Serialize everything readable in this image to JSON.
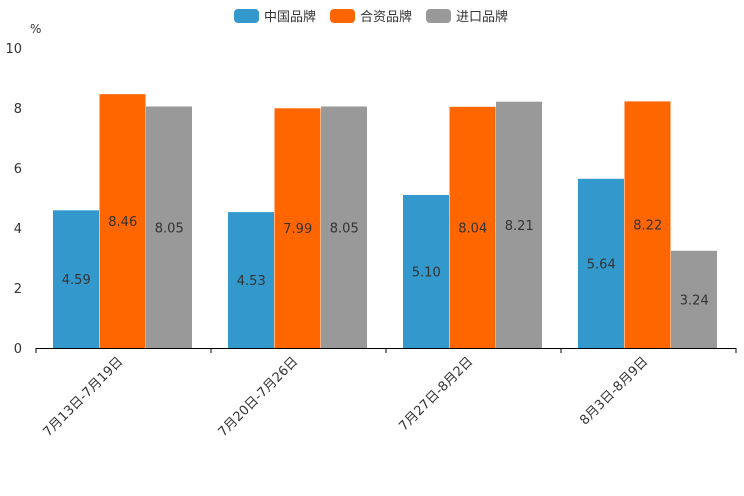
{
  "chart_data": {
    "type": "bar",
    "title": "",
    "xlabel": "",
    "ylabel": "%",
    "ylim": [
      0,
      10
    ],
    "yticks": [
      0,
      2,
      4,
      6,
      8,
      10
    ],
    "categories": [
      "7月13日-7月19日",
      "7月20日-7月26日",
      "7月27日-8月2日",
      "8月3日-8月9日"
    ],
    "series": [
      {
        "name": "中国品牌",
        "color": "#3399CC",
        "values": [
          4.59,
          4.53,
          5.1,
          5.64
        ],
        "labels": [
          "4.59",
          "4.53",
          "5.10",
          "5.64"
        ]
      },
      {
        "name": "合资品牌",
        "color": "#FF6600",
        "values": [
          8.46,
          7.99,
          8.04,
          8.22
        ],
        "labels": [
          "8.46",
          "7.99",
          "8.04",
          "8.22"
        ]
      },
      {
        "name": "进口品牌",
        "color": "#999999",
        "values": [
          8.05,
          8.05,
          8.21,
          3.24
        ],
        "labels": [
          "8.05",
          "8.05",
          "8.21",
          "3.24"
        ]
      }
    ],
    "legend_position": "top-center",
    "grid": false
  }
}
